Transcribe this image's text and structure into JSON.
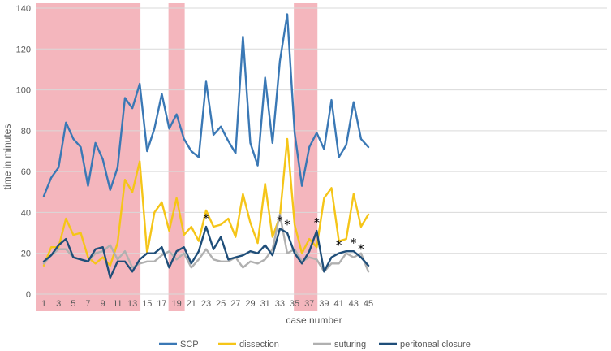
{
  "chart_data": {
    "type": "line",
    "title": "",
    "xlabel": "case number",
    "ylabel": "time in minutes",
    "ylim": [
      0,
      140
    ],
    "yticks": [
      0,
      20,
      40,
      60,
      80,
      100,
      120,
      140
    ],
    "x": [
      1,
      2,
      3,
      4,
      5,
      6,
      7,
      8,
      9,
      10,
      11,
      12,
      13,
      14,
      15,
      16,
      17,
      18,
      19,
      20,
      21,
      22,
      23,
      24,
      25,
      26,
      27,
      28,
      29,
      30,
      31,
      32,
      33,
      34,
      35,
      36,
      37,
      38,
      39,
      40,
      41,
      42,
      43,
      44,
      45
    ],
    "xtick_labels": [
      "1",
      "3",
      "5",
      "7",
      "9",
      "11",
      "13",
      "15",
      "17",
      "19",
      "21",
      "23",
      "25",
      "27",
      "29",
      "31",
      "33",
      "35",
      "37",
      "39",
      "41",
      "43",
      "45"
    ],
    "shaded_ranges": [
      [
        1,
        13
      ],
      [
        19,
        19
      ],
      [
        36,
        37
      ]
    ],
    "shade_color": "#f4b6bd",
    "series": [
      {
        "name": "SCP",
        "color": "#3a78b5",
        "values": [
          48,
          57,
          62,
          84,
          76,
          72,
          53,
          74,
          66,
          51,
          62,
          96,
          91,
          103,
          70,
          81,
          98,
          81,
          88,
          76,
          70,
          67,
          104,
          78,
          82,
          75,
          69,
          126,
          74,
          63,
          106,
          74,
          114,
          137,
          79,
          53,
          72,
          79,
          71,
          95,
          67,
          73,
          94,
          76,
          72
        ]
      },
      {
        "name": "dissection",
        "color": "#f5c518",
        "values": [
          14,
          23,
          23,
          37,
          29,
          30,
          18,
          15,
          18,
          14,
          25,
          56,
          50,
          65,
          20,
          40,
          45,
          31,
          47,
          29,
          33,
          26,
          41,
          33,
          34,
          37,
          28,
          49,
          35,
          25,
          54,
          28,
          38,
          76,
          34,
          20,
          27,
          23,
          47,
          52,
          26,
          27,
          49,
          33,
          39
        ]
      },
      {
        "name": "suturing",
        "color": "#b0b0b0",
        "values": [
          15,
          19,
          22,
          22,
          18,
          17,
          16,
          20,
          21,
          24,
          17,
          21,
          13,
          15,
          16,
          16,
          19,
          21,
          17,
          20,
          13,
          17,
          22,
          17,
          16,
          16,
          18,
          13,
          16,
          15,
          17,
          22,
          39,
          20,
          22,
          16,
          18,
          17,
          11,
          15,
          15,
          20,
          18,
          20,
          11
        ]
      },
      {
        "name": "peritoneal closure",
        "color": "#1f4e79",
        "values": [
          16,
          19,
          24,
          27,
          18,
          17,
          16,
          22,
          23,
          8,
          16,
          16,
          11,
          17,
          20,
          20,
          23,
          13,
          21,
          23,
          15,
          21,
          33,
          22,
          28,
          17,
          18,
          19,
          21,
          20,
          24,
          19,
          32,
          30,
          20,
          15,
          21,
          31,
          11,
          18,
          20,
          21,
          21,
          18,
          14
        ]
      }
    ],
    "annotations": [
      {
        "text": "*",
        "x": 23,
        "y": 33
      },
      {
        "text": "*",
        "x": 33,
        "y": 32
      },
      {
        "text": "*",
        "x": 34,
        "y": 30
      },
      {
        "text": "*",
        "x": 38,
        "y": 31
      },
      {
        "text": "*",
        "x": 41,
        "y": 20
      },
      {
        "text": "*",
        "x": 43,
        "y": 21
      },
      {
        "text": "*",
        "x": 44,
        "y": 18
      }
    ],
    "legend_position": "bottom-center"
  }
}
